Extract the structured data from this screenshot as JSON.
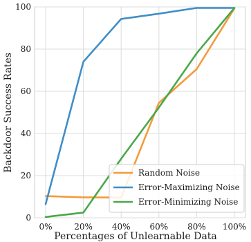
{
  "chart_data": {
    "type": "line",
    "title": "",
    "xlabel": "Percentages of Unlearnable Data",
    "ylabel": "Backdoor Success Rates",
    "categories": [
      "0%",
      "20%",
      "40%",
      "60%",
      "80%",
      "100%"
    ],
    "yticks": [
      "0",
      "20",
      "40",
      "60",
      "80",
      "100"
    ],
    "ylim": [
      0,
      100
    ],
    "grid": true,
    "legend_position": "lower-right",
    "series": [
      {
        "name": "Random Noise",
        "color": "#f59a3a",
        "values": [
          10.3,
          9.7,
          9.6,
          54.5,
          70.5,
          99.3
        ]
      },
      {
        "name": "Error-Maximizing Noise",
        "color": "#3f8ec7",
        "values": [
          6.5,
          74.0,
          94.3,
          96.8,
          99.5,
          99.5
        ]
      },
      {
        "name": "Error-Minimizing Noise",
        "color": "#4aa84a",
        "values": [
          0.4,
          2.5,
          28.0,
          52.3,
          78.0,
          99.5
        ]
      }
    ]
  }
}
